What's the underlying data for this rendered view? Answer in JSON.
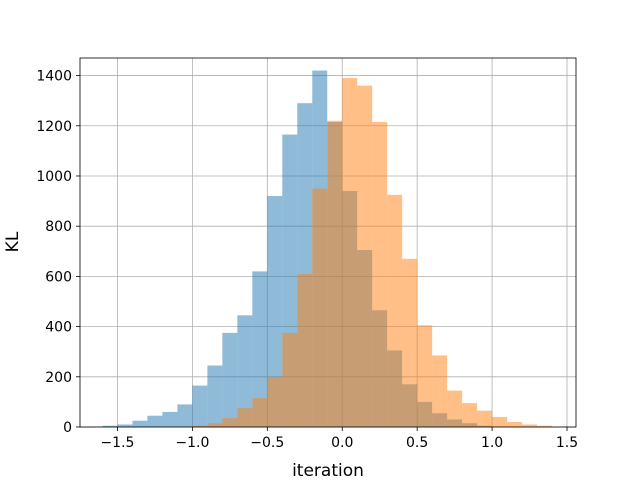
{
  "chart_data": {
    "type": "histogram",
    "title": "",
    "xlabel": "iteration",
    "ylabel": "KL",
    "xlim": [
      -1.75,
      1.56
    ],
    "ylim": [
      0,
      1470
    ],
    "grid": true,
    "x_ticks": [
      -1.5,
      -1.0,
      -0.5,
      0.0,
      0.5,
      1.0,
      1.5
    ],
    "x_tick_labels": [
      "−1.5",
      "−1.0",
      "−0.5",
      "0.0",
      "0.5",
      "1.0",
      "1.5"
    ],
    "y_ticks": [
      0,
      200,
      400,
      600,
      800,
      1000,
      1200,
      1400
    ],
    "y_tick_labels": [
      "0",
      "200",
      "400",
      "600",
      "800",
      "1000",
      "1200",
      "1400"
    ],
    "series": [
      {
        "color": "#1f77b4",
        "opacity": 0.5,
        "bin_edges": [
          -1.6,
          -1.5,
          -1.4,
          -1.3,
          -1.2,
          -1.1,
          -1.0,
          -0.9,
          -0.8,
          -0.7,
          -0.6,
          -0.5,
          -0.4,
          -0.3,
          -0.2,
          -0.1,
          0.0,
          0.1,
          0.2,
          0.3,
          0.4,
          0.5,
          0.6,
          0.7,
          0.8,
          0.9,
          1.0
        ],
        "counts": [
          5,
          10,
          25,
          45,
          60,
          90,
          165,
          245,
          375,
          445,
          620,
          920,
          1165,
          1290,
          1420,
          1215,
          940,
          705,
          465,
          305,
          170,
          100,
          55,
          30,
          15,
          5
        ]
      },
      {
        "color": "#ff7f0e",
        "opacity": 0.5,
        "bin_edges": [
          -1.0,
          -0.9,
          -0.8,
          -0.7,
          -0.6,
          -0.5,
          -0.4,
          -0.3,
          -0.2,
          -0.1,
          0.0,
          0.1,
          0.2,
          0.3,
          0.4,
          0.5,
          0.6,
          0.7,
          0.8,
          0.9,
          1.0,
          1.1,
          1.2,
          1.3,
          1.4
        ],
        "counts": [
          5,
          15,
          35,
          75,
          115,
          200,
          375,
          610,
          950,
          1220,
          1390,
          1360,
          1215,
          925,
          670,
          405,
          285,
          145,
          95,
          65,
          40,
          20,
          10,
          5
        ]
      }
    ]
  }
}
